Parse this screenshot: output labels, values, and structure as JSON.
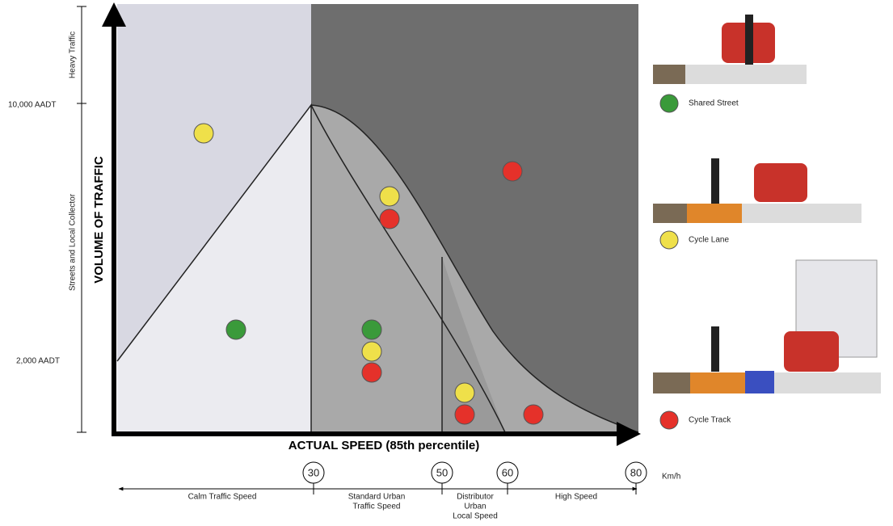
{
  "y_axis": {
    "title": "VOLUME OF TRAFFIC",
    "bands": [
      "Heavy Traffic",
      "Streets and Local Collector"
    ],
    "levels": [
      "10,000 AADT",
      "2,000 AADT"
    ]
  },
  "x_axis": {
    "title": "ACTUAL SPEED (85th percentile)",
    "speeds": [
      "30",
      "50",
      "60",
      "80"
    ],
    "unit": "Km/h",
    "zones": [
      [
        "Calm Traffic Speed"
      ],
      [
        "Standard Urban",
        "Traffic Speed"
      ],
      [
        "Distributor",
        "Urban",
        "Local Speed"
      ],
      [
        "High Speed"
      ]
    ]
  },
  "legend": [
    "Shared Street",
    "Cycle Lane",
    "Cycle Track"
  ]
}
